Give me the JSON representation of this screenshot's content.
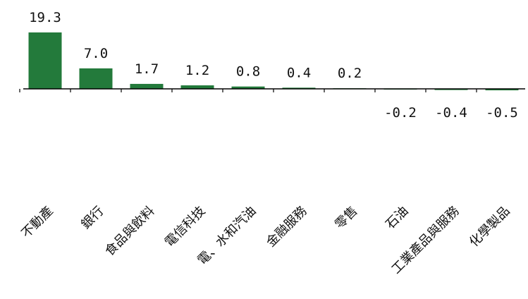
{
  "chart_data": {
    "type": "bar",
    "categories": [
      "不動產",
      "銀行",
      "食品與飲料",
      "電信科技",
      "電、水和汽油",
      "金融服務",
      "零售",
      "石油",
      "工業產品與服務",
      "化學製品"
    ],
    "values": [
      19.3,
      7.0,
      1.7,
      1.2,
      0.8,
      0.4,
      0.2,
      -0.2,
      -0.4,
      -0.5
    ],
    "value_labels": [
      "19.3",
      "7.0",
      "1.7",
      "1.2",
      "0.8",
      "0.4",
      "0.2",
      "-0.2",
      "-0.4",
      "-0.5"
    ],
    "bar_color": "#237a3b",
    "axis_color": "#000000",
    "grid": false,
    "legend": "none"
  }
}
